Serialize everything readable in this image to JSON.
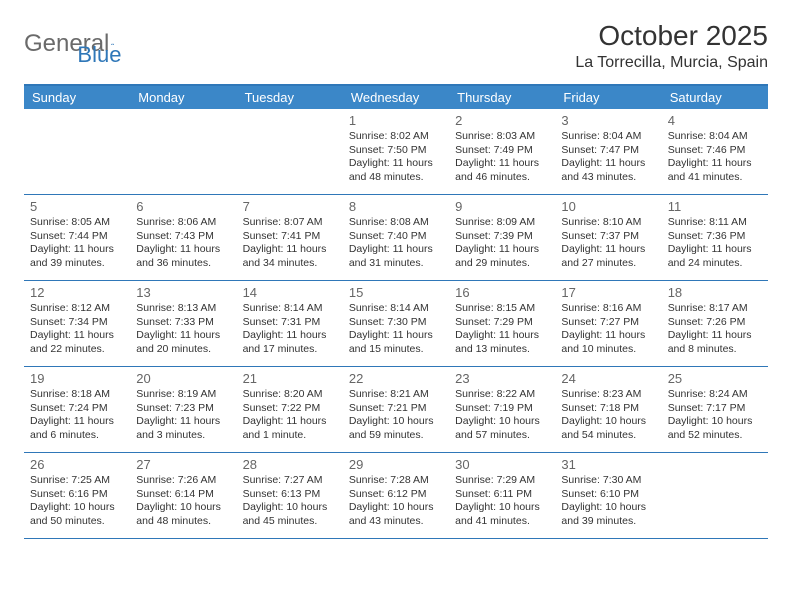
{
  "logo": {
    "text1": "General",
    "text2": "Blue"
  },
  "title": "October 2025",
  "location": "La Torrecilla, Murcia, Spain",
  "dayNames": [
    "Sunday",
    "Monday",
    "Tuesday",
    "Wednesday",
    "Thursday",
    "Friday",
    "Saturday"
  ],
  "colors": {
    "header_bg": "#3b87c8",
    "header_text": "#ffffff",
    "border": "#2f77b8",
    "logo_gray": "#6a6a6a",
    "logo_blue": "#2f77b8"
  },
  "weeks": [
    [
      null,
      null,
      null,
      {
        "n": "1",
        "sr": "8:02 AM",
        "ss": "7:50 PM",
        "dl": "11 hours and 48 minutes."
      },
      {
        "n": "2",
        "sr": "8:03 AM",
        "ss": "7:49 PM",
        "dl": "11 hours and 46 minutes."
      },
      {
        "n": "3",
        "sr": "8:04 AM",
        "ss": "7:47 PM",
        "dl": "11 hours and 43 minutes."
      },
      {
        "n": "4",
        "sr": "8:04 AM",
        "ss": "7:46 PM",
        "dl": "11 hours and 41 minutes."
      }
    ],
    [
      {
        "n": "5",
        "sr": "8:05 AM",
        "ss": "7:44 PM",
        "dl": "11 hours and 39 minutes."
      },
      {
        "n": "6",
        "sr": "8:06 AM",
        "ss": "7:43 PM",
        "dl": "11 hours and 36 minutes."
      },
      {
        "n": "7",
        "sr": "8:07 AM",
        "ss": "7:41 PM",
        "dl": "11 hours and 34 minutes."
      },
      {
        "n": "8",
        "sr": "8:08 AM",
        "ss": "7:40 PM",
        "dl": "11 hours and 31 minutes."
      },
      {
        "n": "9",
        "sr": "8:09 AM",
        "ss": "7:39 PM",
        "dl": "11 hours and 29 minutes."
      },
      {
        "n": "10",
        "sr": "8:10 AM",
        "ss": "7:37 PM",
        "dl": "11 hours and 27 minutes."
      },
      {
        "n": "11",
        "sr": "8:11 AM",
        "ss": "7:36 PM",
        "dl": "11 hours and 24 minutes."
      }
    ],
    [
      {
        "n": "12",
        "sr": "8:12 AM",
        "ss": "7:34 PM",
        "dl": "11 hours and 22 minutes."
      },
      {
        "n": "13",
        "sr": "8:13 AM",
        "ss": "7:33 PM",
        "dl": "11 hours and 20 minutes."
      },
      {
        "n": "14",
        "sr": "8:14 AM",
        "ss": "7:31 PM",
        "dl": "11 hours and 17 minutes."
      },
      {
        "n": "15",
        "sr": "8:14 AM",
        "ss": "7:30 PM",
        "dl": "11 hours and 15 minutes."
      },
      {
        "n": "16",
        "sr": "8:15 AM",
        "ss": "7:29 PM",
        "dl": "11 hours and 13 minutes."
      },
      {
        "n": "17",
        "sr": "8:16 AM",
        "ss": "7:27 PM",
        "dl": "11 hours and 10 minutes."
      },
      {
        "n": "18",
        "sr": "8:17 AM",
        "ss": "7:26 PM",
        "dl": "11 hours and 8 minutes."
      }
    ],
    [
      {
        "n": "19",
        "sr": "8:18 AM",
        "ss": "7:24 PM",
        "dl": "11 hours and 6 minutes."
      },
      {
        "n": "20",
        "sr": "8:19 AM",
        "ss": "7:23 PM",
        "dl": "11 hours and 3 minutes."
      },
      {
        "n": "21",
        "sr": "8:20 AM",
        "ss": "7:22 PM",
        "dl": "11 hours and 1 minute."
      },
      {
        "n": "22",
        "sr": "8:21 AM",
        "ss": "7:21 PM",
        "dl": "10 hours and 59 minutes."
      },
      {
        "n": "23",
        "sr": "8:22 AM",
        "ss": "7:19 PM",
        "dl": "10 hours and 57 minutes."
      },
      {
        "n": "24",
        "sr": "8:23 AM",
        "ss": "7:18 PM",
        "dl": "10 hours and 54 minutes."
      },
      {
        "n": "25",
        "sr": "8:24 AM",
        "ss": "7:17 PM",
        "dl": "10 hours and 52 minutes."
      }
    ],
    [
      {
        "n": "26",
        "sr": "7:25 AM",
        "ss": "6:16 PM",
        "dl": "10 hours and 50 minutes."
      },
      {
        "n": "27",
        "sr": "7:26 AM",
        "ss": "6:14 PM",
        "dl": "10 hours and 48 minutes."
      },
      {
        "n": "28",
        "sr": "7:27 AM",
        "ss": "6:13 PM",
        "dl": "10 hours and 45 minutes."
      },
      {
        "n": "29",
        "sr": "7:28 AM",
        "ss": "6:12 PM",
        "dl": "10 hours and 43 minutes."
      },
      {
        "n": "30",
        "sr": "7:29 AM",
        "ss": "6:11 PM",
        "dl": "10 hours and 41 minutes."
      },
      {
        "n": "31",
        "sr": "7:30 AM",
        "ss": "6:10 PM",
        "dl": "10 hours and 39 minutes."
      },
      null
    ]
  ],
  "labels": {
    "sunrise": "Sunrise: ",
    "sunset": "Sunset: ",
    "daylight": "Daylight: "
  }
}
